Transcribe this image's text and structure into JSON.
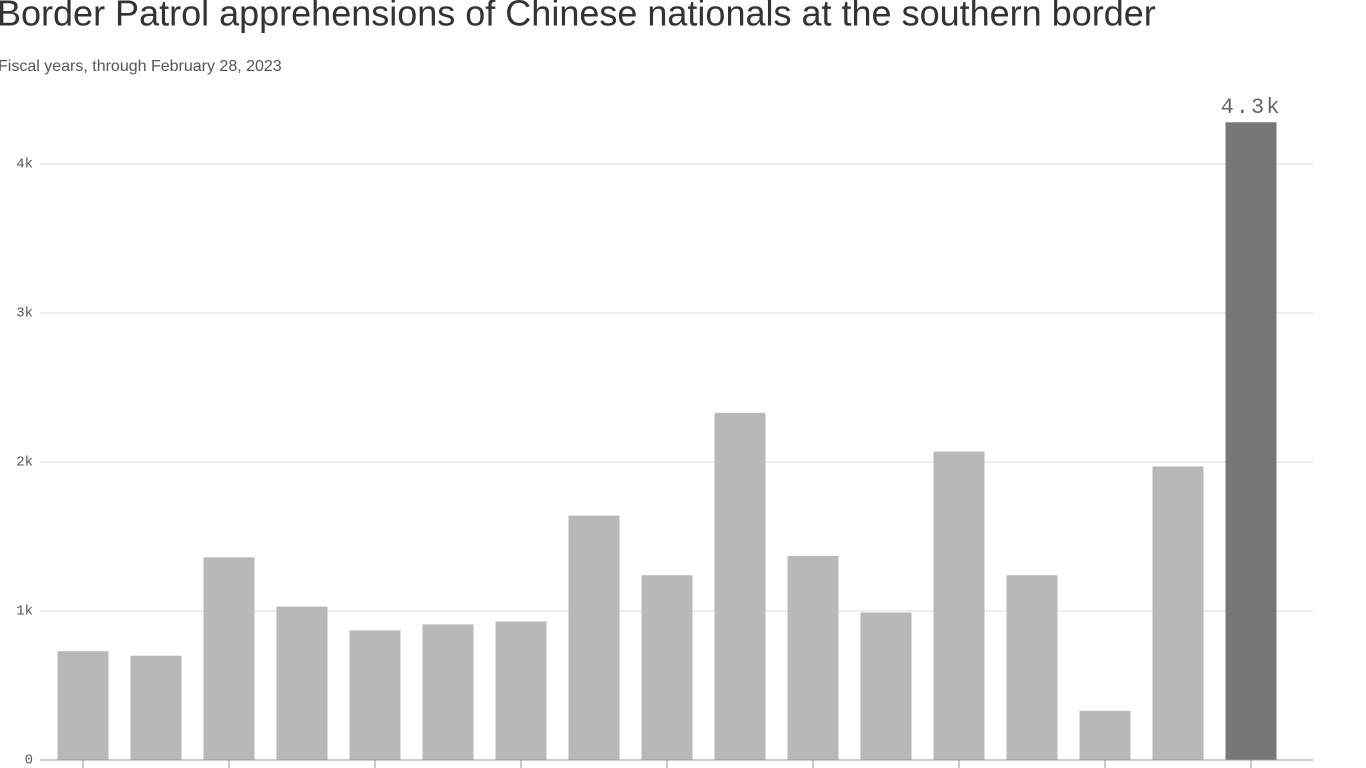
{
  "chart_data": {
    "type": "bar",
    "title": "Border Patrol apprehensions of Chinese nationals at the southern border",
    "subtitle": "Fiscal years, through February 28, 2023",
    "categories": [
      null,
      null,
      null,
      null,
      null,
      null,
      null,
      null,
      null,
      null,
      null,
      null,
      null,
      null,
      null,
      null,
      null
    ],
    "values": [
      730,
      700,
      1360,
      1030,
      870,
      910,
      930,
      1640,
      1240,
      2330,
      1370,
      990,
      2070,
      1240,
      330,
      1970,
      4280
    ],
    "value_labels": [
      null,
      null,
      null,
      null,
      null,
      null,
      null,
      null,
      null,
      null,
      null,
      null,
      null,
      null,
      null,
      null,
      "4.3k"
    ],
    "colors": [
      "#b8b8b8",
      "#b8b8b8",
      "#b8b8b8",
      "#b8b8b8",
      "#b8b8b8",
      "#b8b8b8",
      "#b8b8b8",
      "#b8b8b8",
      "#b8b8b8",
      "#b8b8b8",
      "#b8b8b8",
      "#b8b8b8",
      "#b8b8b8",
      "#b8b8b8",
      "#b8b8b8",
      "#b8b8b8",
      "#777777"
    ],
    "ylim": [
      0,
      4300
    ],
    "yticks": [
      0,
      {
        "value": 1000,
        "label": "1k"
      },
      {
        "value": 2000,
        "label": "2k"
      },
      {
        "value": 3000,
        "label": "3k"
      },
      {
        "value": 4000,
        "label": "4k"
      }
    ],
    "grid": true
  }
}
